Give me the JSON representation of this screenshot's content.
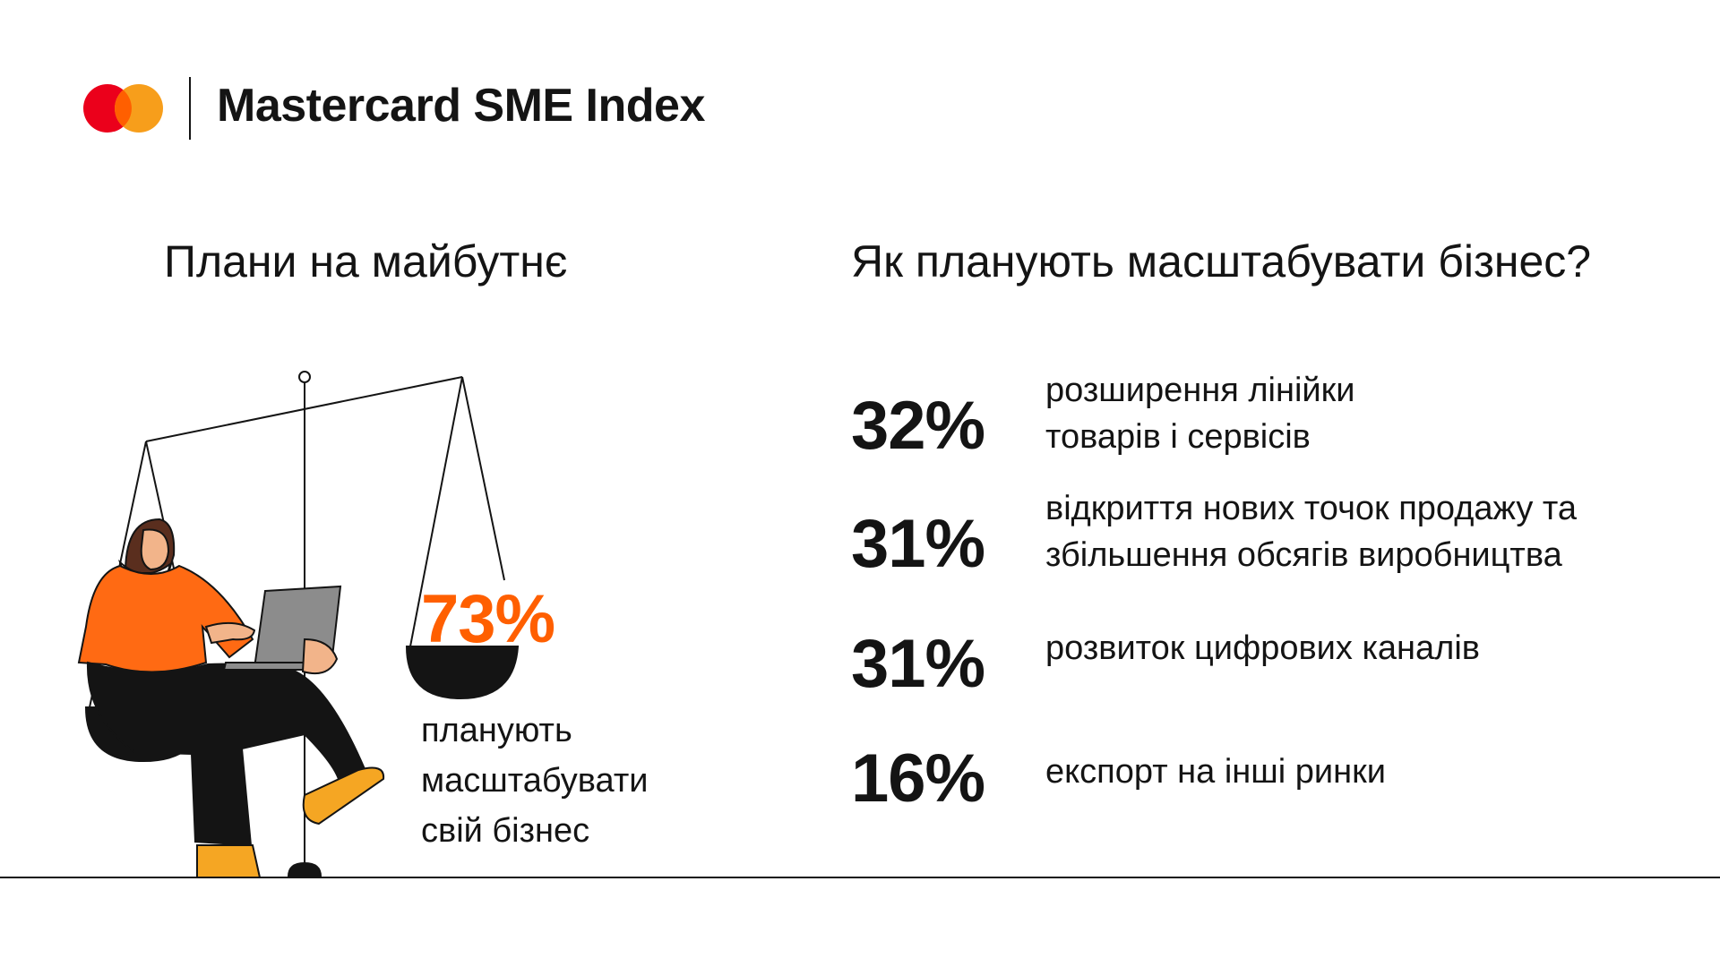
{
  "header": {
    "brand_name": "Mastercard SME Index",
    "logo_colors": {
      "red": "#EB001B",
      "orange": "#F79E1B",
      "overlap": "#FF5F00"
    }
  },
  "left_section": {
    "title": "Плани на майбутнє",
    "highlight_value": "73%",
    "highlight_color": "#FF5F00",
    "caption_lines": [
      "планують",
      "масштабувати",
      "свій бізнес"
    ]
  },
  "right_section": {
    "title": "Як планують масштабувати бізнес?",
    "items": [
      {
        "value": "32%",
        "label_lines": [
          "розширення лінійки",
          "товарів і сервісів"
        ]
      },
      {
        "value": "31%",
        "label_lines": [
          "відкриття нових точок продажу та",
          "збільшення обсягів виробництва"
        ]
      },
      {
        "value": "31%",
        "label_lines": [
          "розвиток цифрових каналів"
        ]
      },
      {
        "value": "16%",
        "label_lines": [
          "експорт на інші ринки"
        ]
      }
    ]
  },
  "illustration": {
    "icons": [
      "scale-icon",
      "woman-with-laptop-icon"
    ],
    "colors": {
      "shirt": "#FF6A13",
      "shoes": "#F5A623",
      "ink": "#141414",
      "laptop": "#8C8C8C"
    }
  }
}
